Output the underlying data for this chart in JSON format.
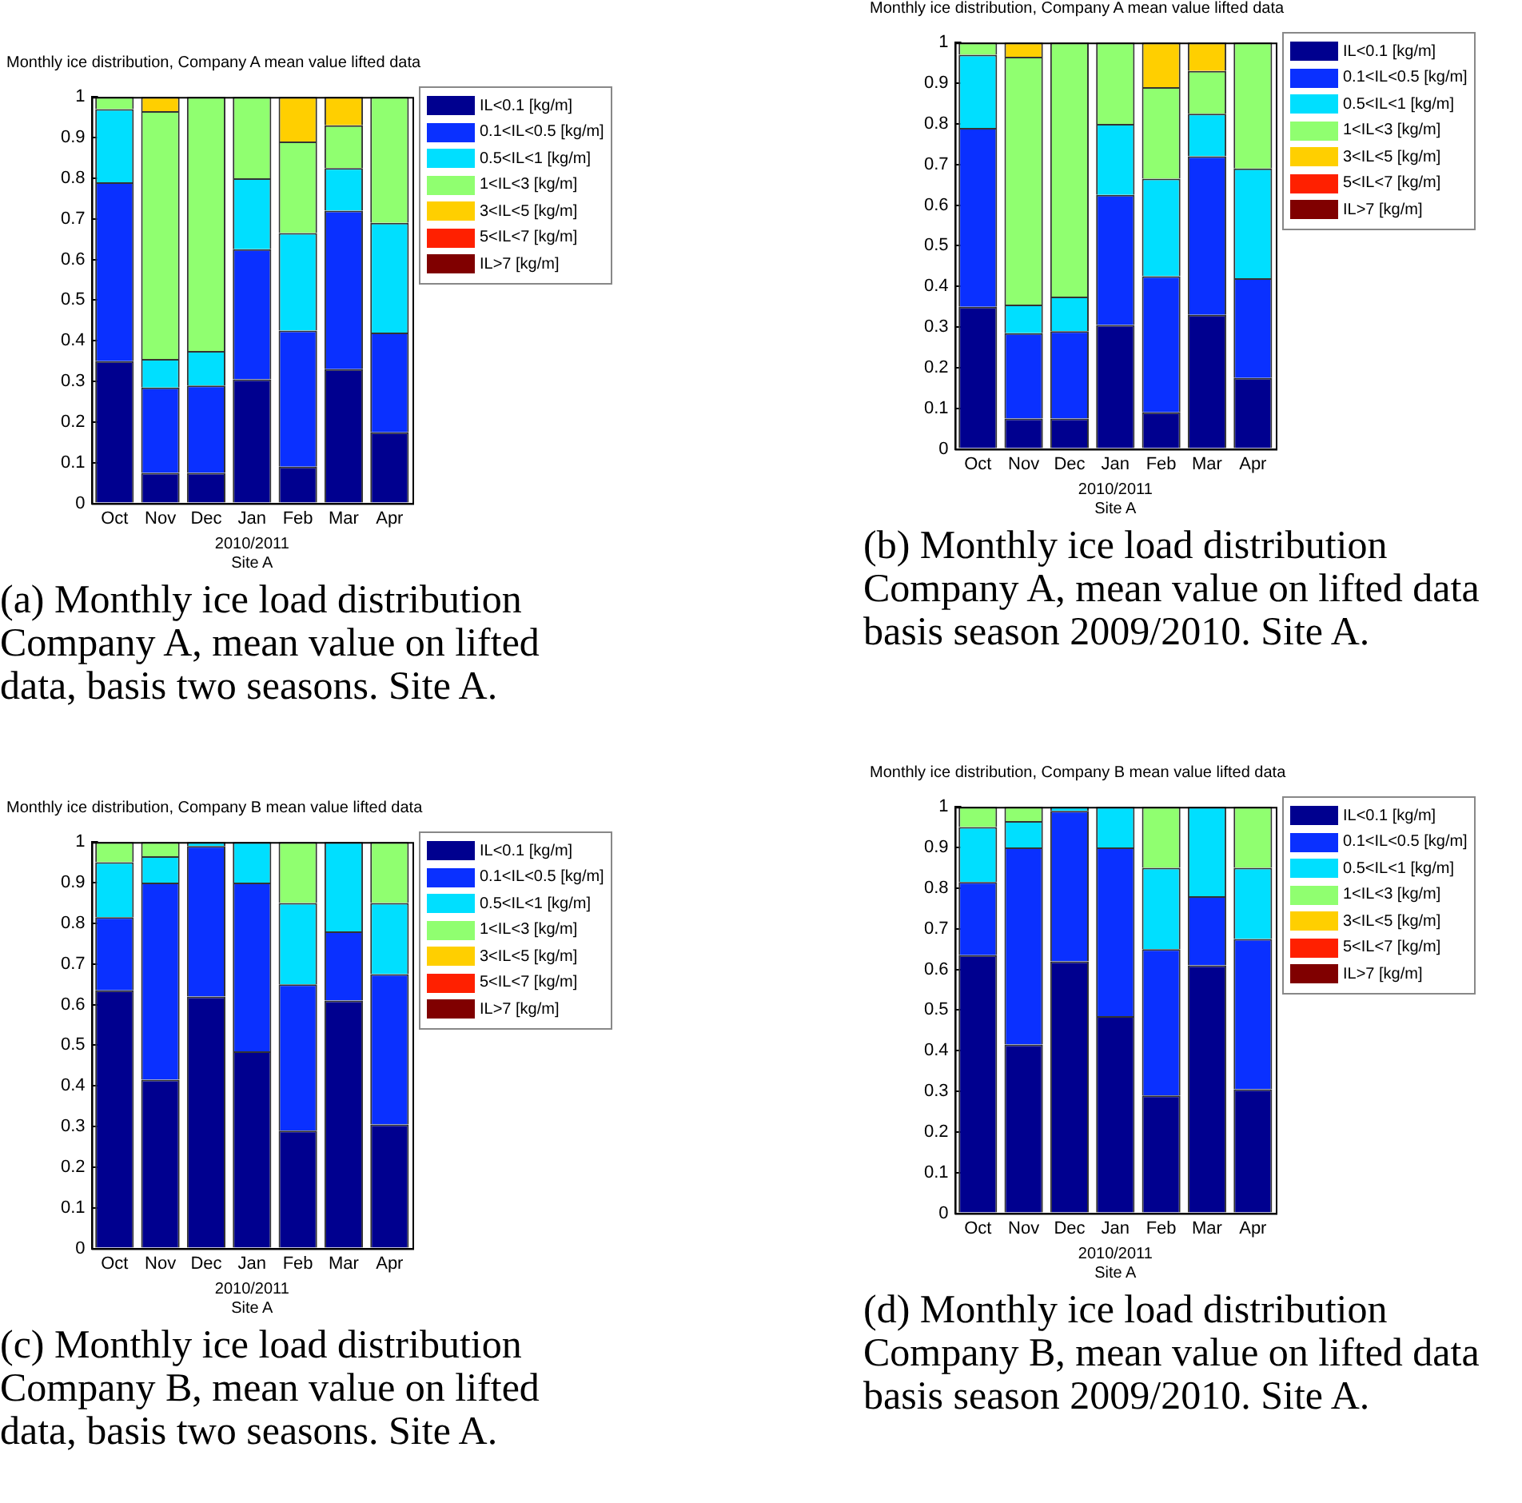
{
  "chart_data": [
    {
      "type": "bar",
      "stacked": true,
      "title": "Monthly ice distribution, Company A mean value lifted data",
      "xlabel": "2010/2011\nSite A",
      "categories": [
        "Oct",
        "Nov",
        "Dec",
        "Jan",
        "Feb",
        "Mar",
        "Apr"
      ],
      "ylim": [
        0,
        1
      ],
      "yticks": [
        0,
        0.1,
        0.2,
        0.3,
        0.4,
        0.5,
        0.6,
        0.7,
        0.8,
        0.9,
        1
      ],
      "grid": false,
      "legend": "right",
      "annotations": [
        "(a) Monthly ice load distribution Company A, mean value on lifted data, basis two seasons. Site A."
      ],
      "series": [
        {
          "name": "IL<0.1 [kg/m]",
          "color": "#00008f",
          "values": [
            0.35,
            0.075,
            0.075,
            0.305,
            0.09,
            0.33,
            0.175
          ]
        },
        {
          "name": "0.1<IL<0.5 [kg/m]",
          "color": "#0a30ff",
          "values": [
            0.44,
            0.21,
            0.215,
            0.32,
            0.335,
            0.39,
            0.245
          ]
        },
        {
          "name": "0.5<IL<1 [kg/m]",
          "color": "#00dfff",
          "values": [
            0.18,
            0.07,
            0.085,
            0.175,
            0.24,
            0.105,
            0.27
          ]
        },
        {
          "name": "1<IL<3 [kg/m]",
          "color": "#90ff70",
          "values": [
            0.03,
            0.61,
            0.625,
            0.2,
            0.225,
            0.105,
            0.31
          ]
        },
        {
          "name": "3<IL<5 [kg/m]",
          "color": "#ffcf00",
          "values": [
            0,
            0.035,
            0,
            0,
            0.11,
            0.07,
            0
          ]
        },
        {
          "name": "5<IL<7 [kg/m]",
          "color": "#ff2000",
          "values": [
            0,
            0,
            0,
            0,
            0,
            0,
            0
          ]
        },
        {
          "name": "IL>7 [kg/m]",
          "color": "#800000",
          "values": [
            0,
            0,
            0,
            0,
            0,
            0,
            0
          ]
        }
      ]
    },
    {
      "type": "bar",
      "stacked": true,
      "title": "Monthly ice distribution, Company A mean value lifted data",
      "xlabel": "2010/2011\nSite A",
      "categories": [
        "Oct",
        "Nov",
        "Dec",
        "Jan",
        "Feb",
        "Mar",
        "Apr"
      ],
      "ylim": [
        0,
        1
      ],
      "yticks": [
        0,
        0.1,
        0.2,
        0.3,
        0.4,
        0.5,
        0.6,
        0.7,
        0.8,
        0.9,
        1
      ],
      "grid": false,
      "legend": "right",
      "annotations": [
        "(b) Monthly ice load distribution Company A, mean value on lifted data basis season 2009/2010. Site A."
      ],
      "series": [
        {
          "name": "IL<0.1 [kg/m]",
          "color": "#00008f",
          "values": [
            0.35,
            0.075,
            0.075,
            0.305,
            0.09,
            0.33,
            0.175
          ]
        },
        {
          "name": "0.1<IL<0.5 [kg/m]",
          "color": "#0a30ff",
          "values": [
            0.44,
            0.21,
            0.215,
            0.32,
            0.335,
            0.39,
            0.245
          ]
        },
        {
          "name": "0.5<IL<1 [kg/m]",
          "color": "#00dfff",
          "values": [
            0.18,
            0.07,
            0.085,
            0.175,
            0.24,
            0.105,
            0.27
          ]
        },
        {
          "name": "1<IL<3 [kg/m]",
          "color": "#90ff70",
          "values": [
            0.03,
            0.61,
            0.625,
            0.2,
            0.225,
            0.105,
            0.31
          ]
        },
        {
          "name": "3<IL<5 [kg/m]",
          "color": "#ffcf00",
          "values": [
            0,
            0.035,
            0,
            0,
            0.11,
            0.07,
            0
          ]
        },
        {
          "name": "5<IL<7 [kg/m]",
          "color": "#ff2000",
          "values": [
            0,
            0,
            0,
            0,
            0,
            0,
            0
          ]
        },
        {
          "name": "IL>7 [kg/m]",
          "color": "#800000",
          "values": [
            0,
            0,
            0,
            0,
            0,
            0,
            0
          ]
        }
      ]
    },
    {
      "type": "bar",
      "stacked": true,
      "title": "Monthly ice distribution, Company B mean value lifted data",
      "xlabel": "2010/2011\nSite A",
      "categories": [
        "Oct",
        "Nov",
        "Dec",
        "Jan",
        "Feb",
        "Mar",
        "Apr"
      ],
      "ylim": [
        0,
        1
      ],
      "yticks": [
        0,
        0.1,
        0.2,
        0.3,
        0.4,
        0.5,
        0.6,
        0.7,
        0.8,
        0.9,
        1
      ],
      "grid": false,
      "legend": "right",
      "annotations": [
        "(c) Monthly ice load distribution Company B, mean value on lifted data, basis two seasons. Site A."
      ],
      "series": [
        {
          "name": "IL<0.1 [kg/m]",
          "color": "#00008f",
          "values": [
            0.635,
            0.415,
            0.62,
            0.485,
            0.29,
            0.61,
            0.305
          ]
        },
        {
          "name": "0.1<IL<0.5 [kg/m]",
          "color": "#0a30ff",
          "values": [
            0.18,
            0.485,
            0.37,
            0.415,
            0.36,
            0.17,
            0.37
          ]
        },
        {
          "name": "0.5<IL<1 [kg/m]",
          "color": "#00dfff",
          "values": [
            0.135,
            0.065,
            0.01,
            0.1,
            0.2,
            0.22,
            0.175
          ]
        },
        {
          "name": "1<IL<3 [kg/m]",
          "color": "#90ff70",
          "values": [
            0.05,
            0.035,
            0,
            0,
            0.15,
            0,
            0.15
          ]
        },
        {
          "name": "3<IL<5 [kg/m]",
          "color": "#ffcf00",
          "values": [
            0,
            0,
            0,
            0,
            0,
            0,
            0
          ]
        },
        {
          "name": "5<IL<7 [kg/m]",
          "color": "#ff2000",
          "values": [
            0,
            0,
            0,
            0,
            0,
            0,
            0
          ]
        },
        {
          "name": "IL>7 [kg/m]",
          "color": "#800000",
          "values": [
            0,
            0,
            0,
            0,
            0,
            0,
            0
          ]
        }
      ]
    },
    {
      "type": "bar",
      "stacked": true,
      "title": "Monthly ice distribution, Company B mean value lifted data",
      "xlabel": "2010/2011\nSite A",
      "categories": [
        "Oct",
        "Nov",
        "Dec",
        "Jan",
        "Feb",
        "Mar",
        "Apr"
      ],
      "ylim": [
        0,
        1
      ],
      "yticks": [
        0,
        0.1,
        0.2,
        0.3,
        0.4,
        0.5,
        0.6,
        0.7,
        0.8,
        0.9,
        1
      ],
      "grid": false,
      "legend": "right",
      "annotations": [
        "(d) Monthly ice load distribution Company B, mean value on lifted data basis season 2009/2010. Site A."
      ],
      "series": [
        {
          "name": "IL<0.1 [kg/m]",
          "color": "#00008f",
          "values": [
            0.635,
            0.415,
            0.62,
            0.485,
            0.29,
            0.61,
            0.305
          ]
        },
        {
          "name": "0.1<IL<0.5 [kg/m]",
          "color": "#0a30ff",
          "values": [
            0.18,
            0.485,
            0.37,
            0.415,
            0.36,
            0.17,
            0.37
          ]
        },
        {
          "name": "0.5<IL<1 [kg/m]",
          "color": "#00dfff",
          "values": [
            0.135,
            0.065,
            0.01,
            0.1,
            0.2,
            0.22,
            0.175
          ]
        },
        {
          "name": "1<IL<3 [kg/m]",
          "color": "#90ff70",
          "values": [
            0.05,
            0.035,
            0,
            0,
            0.15,
            0,
            0.15
          ]
        },
        {
          "name": "3<IL<5 [kg/m]",
          "color": "#ffcf00",
          "values": [
            0,
            0,
            0,
            0,
            0,
            0,
            0
          ]
        },
        {
          "name": "5<IL<7 [kg/m]",
          "color": "#ff2000",
          "values": [
            0,
            0,
            0,
            0,
            0,
            0,
            0
          ]
        },
        {
          "name": "IL>7 [kg/m]",
          "color": "#800000",
          "values": [
            0,
            0,
            0,
            0,
            0,
            0,
            0
          ]
        }
      ]
    }
  ]
}
